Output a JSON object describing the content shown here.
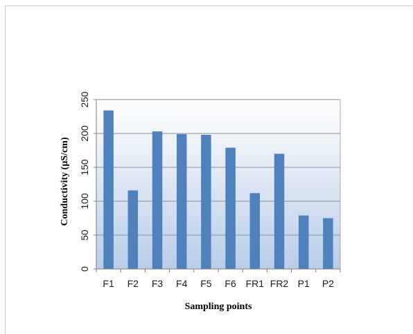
{
  "chart_data": {
    "type": "bar",
    "title": "",
    "xlabel": "Sampling points",
    "ylabel": "Conductivity (µS/cm)",
    "categories": [
      "F1",
      "F2",
      "F3",
      "F4",
      "F5",
      "F6",
      "FR1",
      "FR2",
      "P1",
      "P2"
    ],
    "values": [
      234,
      116,
      203,
      199,
      198,
      179,
      112,
      170,
      79,
      75
    ],
    "ylim": [
      0,
      250
    ],
    "yticks": [
      "0",
      "50",
      "100",
      "150",
      "200",
      "250"
    ],
    "grid": true,
    "legend": "none",
    "colors": {
      "bar": "#4f81bd",
      "plot_top": "#ffffff",
      "plot_bottom": "#b9cde8",
      "grid": "#8c8c8c"
    }
  }
}
